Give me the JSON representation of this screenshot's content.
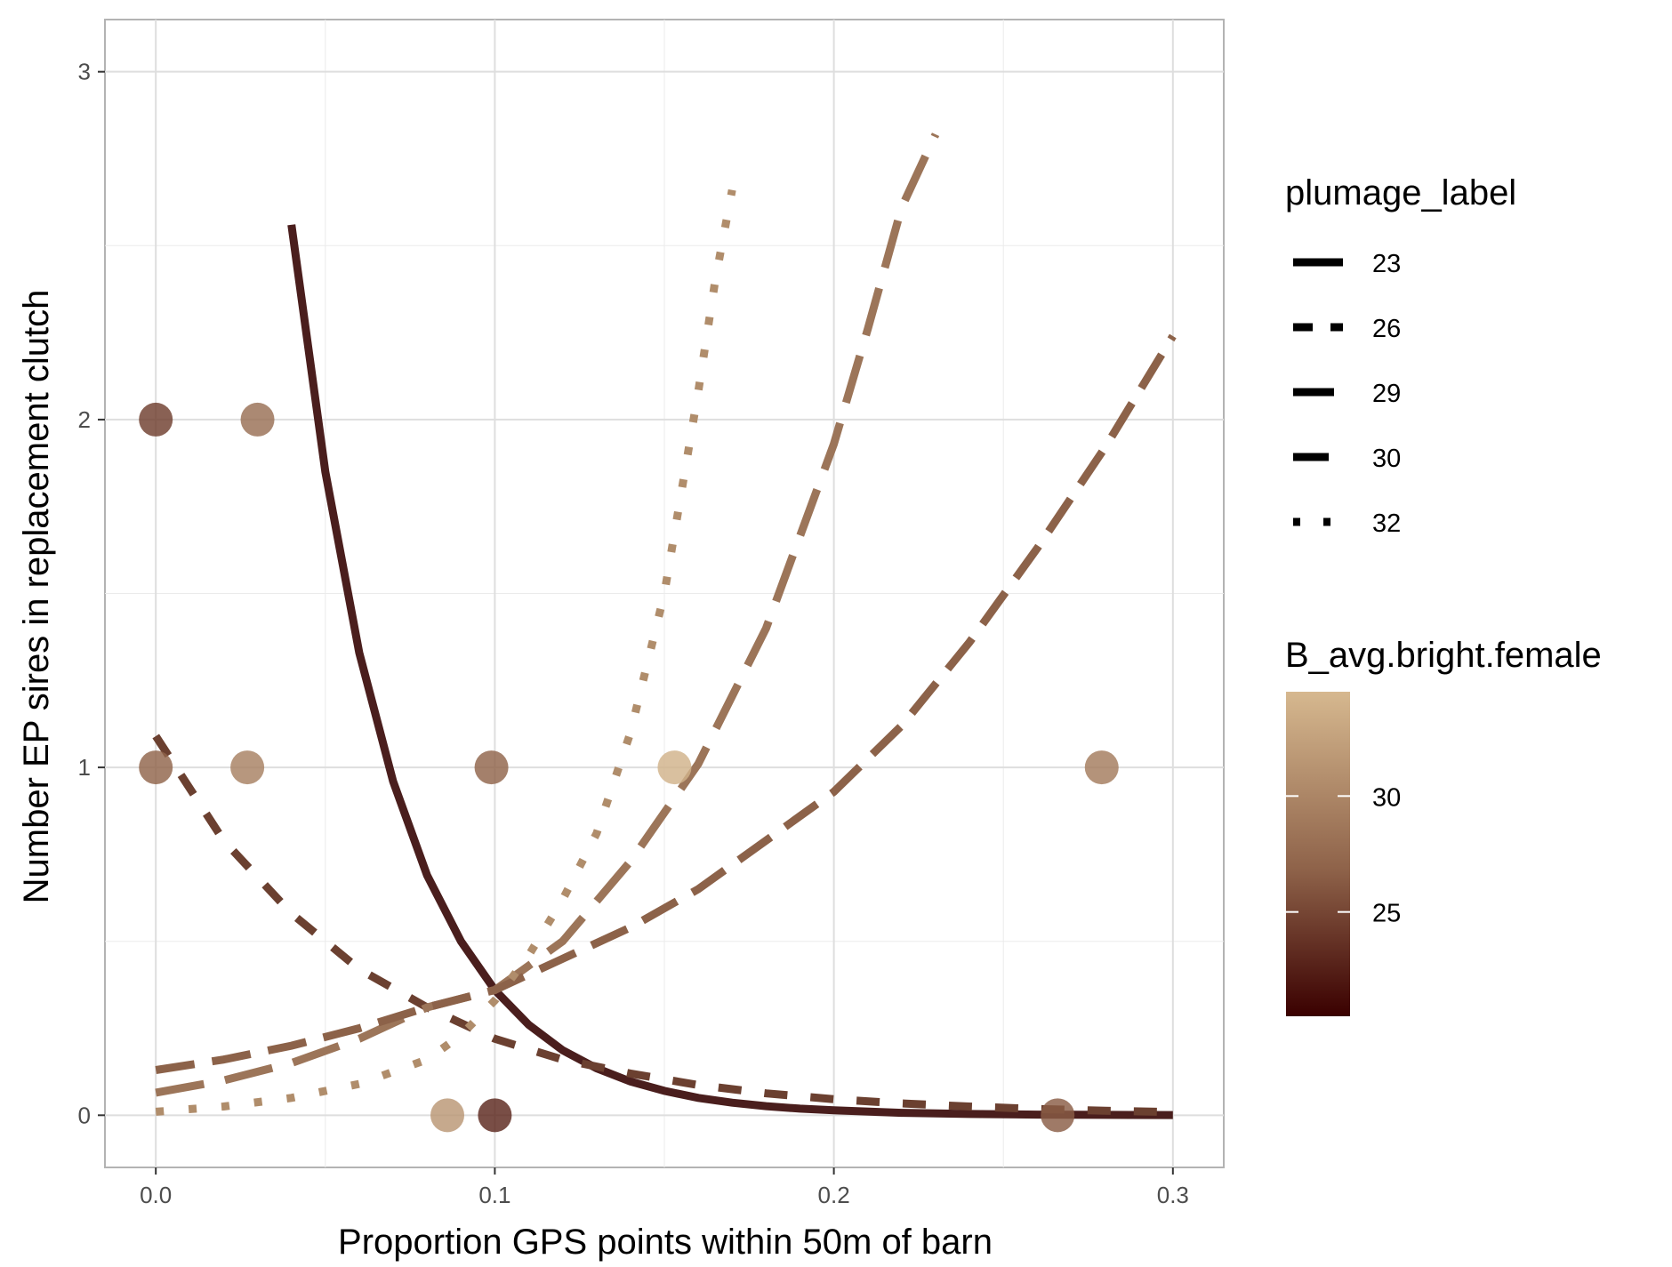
{
  "chart_data": {
    "type": "scatter",
    "title": "",
    "xlabel": "Proportion GPS points within 50m of barn",
    "ylabel": "Number EP sires in replacement clutch",
    "xlim": [
      -0.015,
      0.315
    ],
    "ylim": [
      -0.15,
      3.15
    ],
    "x_ticks": [
      0.0,
      0.1,
      0.2,
      0.3
    ],
    "x_tick_labels": [
      "0.0",
      "0.1",
      "0.2",
      "0.3"
    ],
    "y_ticks": [
      0,
      1,
      2,
      3
    ],
    "y_tick_labels": [
      "0",
      "1",
      "2",
      "3"
    ],
    "grid": true,
    "points": [
      {
        "x": 0.0,
        "y": 2,
        "bright": 24.5
      },
      {
        "x": 0.03,
        "y": 2,
        "bright": 28.0
      },
      {
        "x": 0.0,
        "y": 1,
        "bright": 27.0
      },
      {
        "x": 0.027,
        "y": 1,
        "bright": 29.5
      },
      {
        "x": 0.099,
        "y": 1,
        "bright": 27.0
      },
      {
        "x": 0.153,
        "y": 1,
        "bright": 34.0
      },
      {
        "x": 0.279,
        "y": 1,
        "bright": 29.0
      },
      {
        "x": 0.086,
        "y": 0,
        "bright": 31.5
      },
      {
        "x": 0.1,
        "y": 0,
        "bright": 23.0
      },
      {
        "x": 0.266,
        "y": 0,
        "bright": 26.5
      }
    ],
    "series": [
      {
        "name": "23",
        "dash": "solid",
        "color": "#4a1e1d",
        "x": [
          0.04,
          0.05,
          0.06,
          0.07,
          0.08,
          0.09,
          0.1,
          0.11,
          0.12,
          0.13,
          0.14,
          0.15,
          0.16,
          0.17,
          0.18,
          0.19,
          0.2,
          0.22,
          0.24,
          0.26,
          0.28,
          0.3
        ],
        "y": [
          2.56,
          1.85,
          1.33,
          0.96,
          0.69,
          0.5,
          0.36,
          0.26,
          0.187,
          0.135,
          0.097,
          0.07,
          0.05,
          0.036,
          0.026,
          0.019,
          0.014,
          0.007,
          0.0037,
          0.0019,
          0.001,
          0.0005
        ]
      },
      {
        "name": "26",
        "dash": "dash",
        "color": "#6b4030",
        "x": [
          0.0,
          0.02,
          0.04,
          0.06,
          0.08,
          0.1,
          0.12,
          0.14,
          0.16,
          0.18,
          0.2,
          0.22,
          0.24,
          0.26,
          0.28,
          0.3
        ],
        "y": [
          1.09,
          0.79,
          0.58,
          0.42,
          0.31,
          0.22,
          0.16,
          0.12,
          0.087,
          0.063,
          0.046,
          0.034,
          0.025,
          0.018,
          0.013,
          0.009
        ]
      },
      {
        "name": "29",
        "dash": "longdash",
        "color": "#9c7559",
        "x": [
          0.0,
          0.02,
          0.04,
          0.06,
          0.08,
          0.1,
          0.12,
          0.14,
          0.16,
          0.18,
          0.2,
          0.21,
          0.22,
          0.23
        ],
        "y": [
          0.065,
          0.1,
          0.15,
          0.22,
          0.31,
          0.36,
          0.5,
          0.73,
          1.01,
          1.4,
          1.93,
          2.26,
          2.61,
          2.82
        ]
      },
      {
        "name": "30",
        "dash": "longdash2",
        "color": "#8c6249",
        "x": [
          0.0,
          0.02,
          0.04,
          0.06,
          0.08,
          0.1,
          0.12,
          0.14,
          0.16,
          0.18,
          0.2,
          0.22,
          0.24,
          0.26,
          0.28,
          0.3
        ],
        "y": [
          0.13,
          0.16,
          0.2,
          0.25,
          0.31,
          0.36,
          0.45,
          0.54,
          0.65,
          0.79,
          0.93,
          1.12,
          1.36,
          1.63,
          1.92,
          2.24
        ]
      },
      {
        "name": "32",
        "dash": "dotted",
        "color": "#b08d6b",
        "x": [
          0.0,
          0.02,
          0.04,
          0.06,
          0.08,
          0.09,
          0.1,
          0.11,
          0.12,
          0.13,
          0.14,
          0.15,
          0.16,
          0.165,
          0.17
        ],
        "y": [
          0.01,
          0.025,
          0.05,
          0.09,
          0.16,
          0.23,
          0.33,
          0.46,
          0.62,
          0.81,
          1.1,
          1.5,
          2.08,
          2.4,
          2.66
        ]
      }
    ],
    "legend_linetype": {
      "title": "plumage_label",
      "placement": "right",
      "entries": [
        {
          "label": "23",
          "dash": "solid"
        },
        {
          "label": "26",
          "dash": "dash"
        },
        {
          "label": "29",
          "dash": "longdash"
        },
        {
          "label": "30",
          "dash": "longdash2"
        },
        {
          "label": "32",
          "dash": "dotted"
        }
      ]
    },
    "legend_color": {
      "title": "B_avg.bright.female",
      "placement": "right",
      "range": [
        20.5,
        34.5
      ],
      "ticks": [
        25,
        30
      ],
      "tick_labels": [
        "25",
        "30"
      ],
      "low_color": "#3a0000",
      "mid_color": "#8e6249",
      "high_color": "#d6b88f"
    }
  }
}
